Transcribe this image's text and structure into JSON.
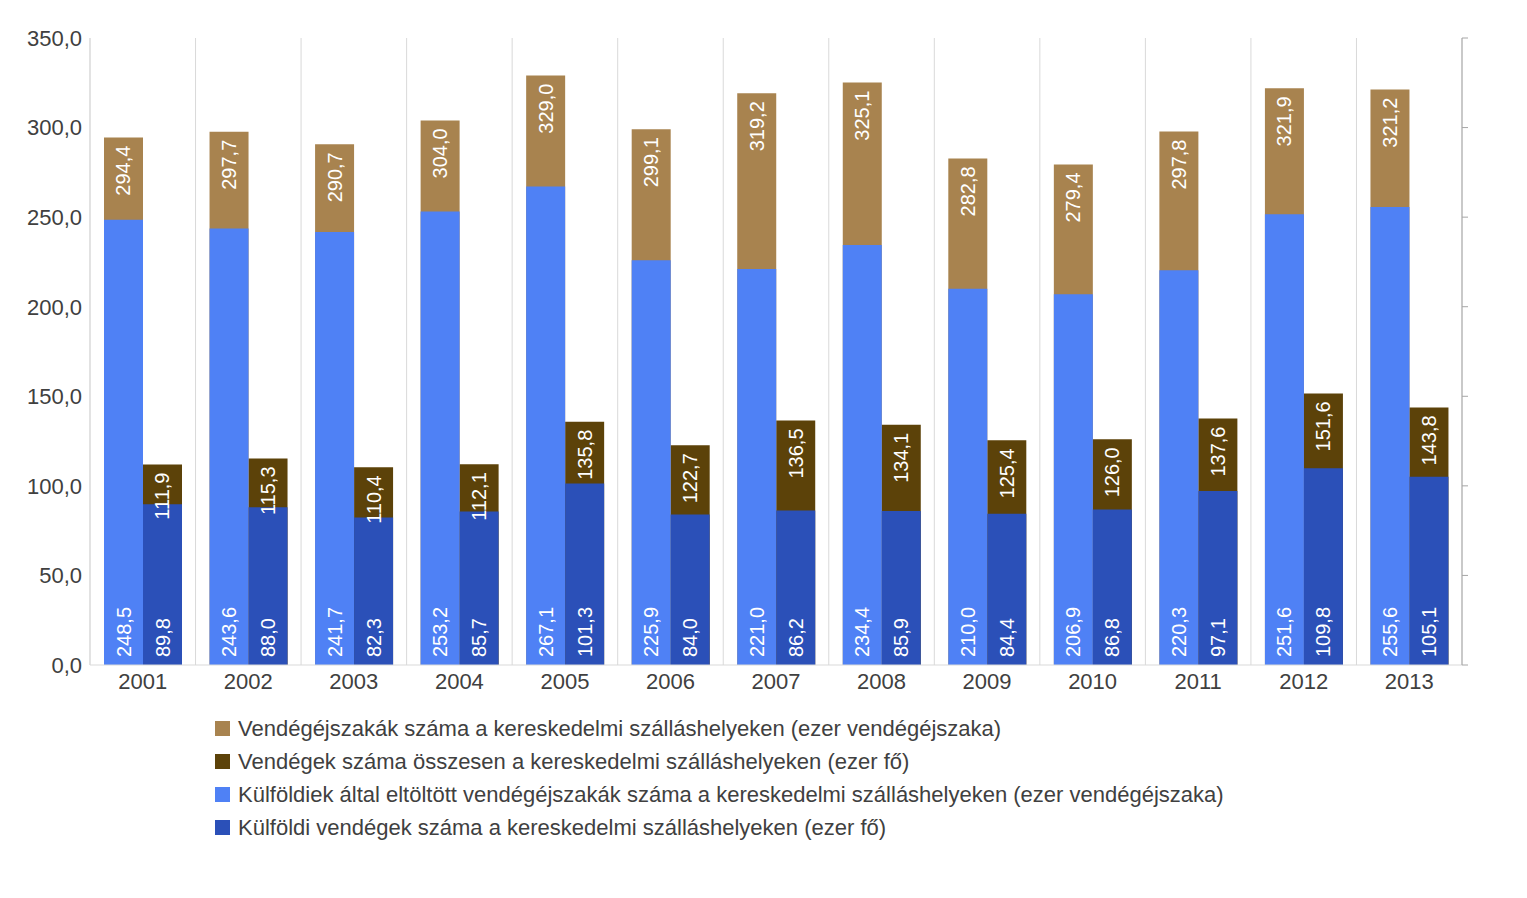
{
  "chart_data": {
    "type": "bar",
    "categories": [
      "2001",
      "2002",
      "2003",
      "2004",
      "2005",
      "2006",
      "2007",
      "2008",
      "2009",
      "2010",
      "2011",
      "2012",
      "2013"
    ],
    "series": [
      {
        "name": "Vendégéjszakák száma a kereskedelmi szálláshelyeken (ezer vendégéjszaka)",
        "color": "#a8834f",
        "values": [
          294.4,
          297.7,
          290.7,
          304.0,
          329.0,
          299.1,
          319.2,
          325.1,
          282.8,
          279.4,
          297.8,
          321.9,
          321.2
        ],
        "value_labels": [
          "294,4",
          "297,7",
          "290,7",
          "304,0",
          "329,0",
          "299,1",
          "319,2",
          "325,1",
          "282,8",
          "279,4",
          "297,8",
          "321,9",
          "321,2"
        ]
      },
      {
        "name": "Vendégek száma összesen a kereskedelmi szálláshelyeken (ezer fő)",
        "color": "#5c4209",
        "values": [
          111.9,
          115.3,
          110.4,
          112.1,
          135.8,
          122.7,
          136.5,
          134.1,
          125.4,
          126.0,
          137.6,
          151.6,
          143.8
        ],
        "value_labels": [
          "111,9",
          "115,3",
          "110,4",
          "112,1",
          "135,8",
          "122,7",
          "136,5",
          "134,1",
          "125,4",
          "126,0",
          "137,6",
          "151,6",
          "143,8"
        ]
      },
      {
        "name": "Külföldiek által eltöltött vendégéjszakák száma a kereskedelmi szálláshelyeken (ezer vendégéjszaka)",
        "color": "#4f81f5",
        "values": [
          248.5,
          243.6,
          241.7,
          253.2,
          267.1,
          225.9,
          221.0,
          234.4,
          210.0,
          206.9,
          220.3,
          251.6,
          255.6
        ],
        "value_labels": [
          "248,5",
          "243,6",
          "241,7",
          "253,2",
          "267,1",
          "225,9",
          "221,0",
          "234,4",
          "210,0",
          "206,9",
          "220,3",
          "251,6",
          "255,6"
        ]
      },
      {
        "name": "Külföldi vendégek száma a kereskedelmi szálláshelyeken (ezer fő)",
        "color": "#2b50b8",
        "values": [
          89.8,
          88.0,
          82.3,
          85.7,
          101.3,
          84.0,
          86.2,
          85.9,
          84.4,
          86.8,
          97.1,
          109.8,
          105.1
        ],
        "value_labels": [
          "89,8",
          "88,0",
          "82,3",
          "85,7",
          "101,3",
          "84,0",
          "86,2",
          "85,9",
          "84,4",
          "86,8",
          "97,1",
          "109,8",
          "105,1"
        ]
      }
    ],
    "ylim": [
      0,
      350
    ],
    "yticks": [
      {
        "value": 0,
        "label": "0,0"
      },
      {
        "value": 50,
        "label": "50,0"
      },
      {
        "value": 100,
        "label": "100,0"
      },
      {
        "value": 150,
        "label": "150,0"
      },
      {
        "value": 200,
        "label": "200,0"
      },
      {
        "value": 250,
        "label": "250,0"
      },
      {
        "value": 300,
        "label": "300,0"
      },
      {
        "value": 350,
        "label": "350,0"
      }
    ],
    "grid": true,
    "data_labels": true,
    "legend": "bottom"
  }
}
